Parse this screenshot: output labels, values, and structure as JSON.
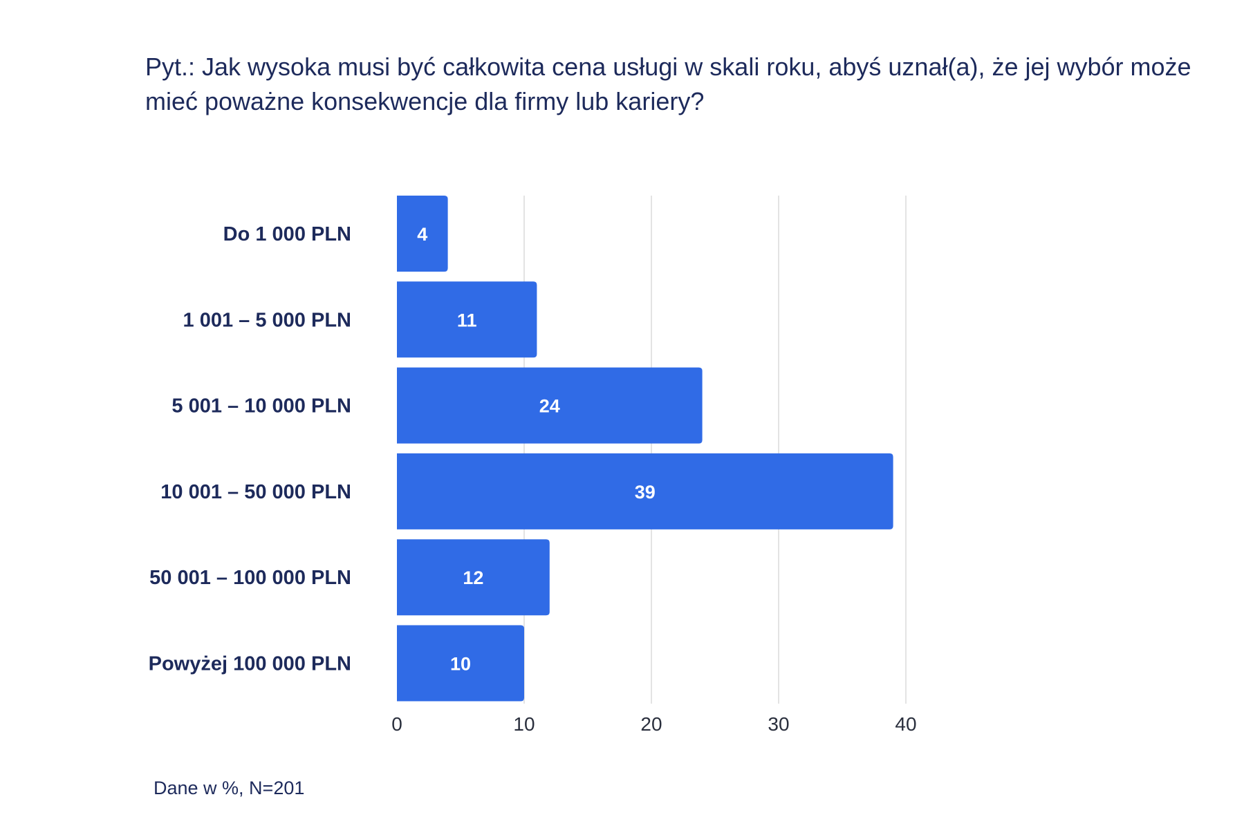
{
  "chart_data": {
    "type": "bar",
    "orientation": "horizontal",
    "title": "Pyt.: Jak wysoka musi być całkowita cena usługi w skali roku, abyś uznał(a), że jej wybór może mieć poważne konsekwencje dla firmy lub kariery?",
    "categories": [
      "Do 1 000 PLN",
      "1 001 – 5 000 PLN",
      "5 001 – 10 000 PLN",
      "10 001 – 50 000 PLN",
      "50 001 – 100 000 PLN",
      "Powyżej 100 000 PLN"
    ],
    "values": [
      4,
      11,
      24,
      39,
      12,
      10
    ],
    "data_labels": [
      "4",
      "11",
      "24",
      "39",
      "12",
      "10"
    ],
    "xlim": [
      0,
      40
    ],
    "x_ticks": [
      0,
      10,
      20,
      30,
      40
    ],
    "x_tick_labels": [
      "0",
      "10",
      "20",
      "30",
      "40"
    ],
    "grid": "vertical",
    "bar_color": "#306be6",
    "grid_color": "#e3e3e3",
    "note": "Dane w %, N=201"
  }
}
